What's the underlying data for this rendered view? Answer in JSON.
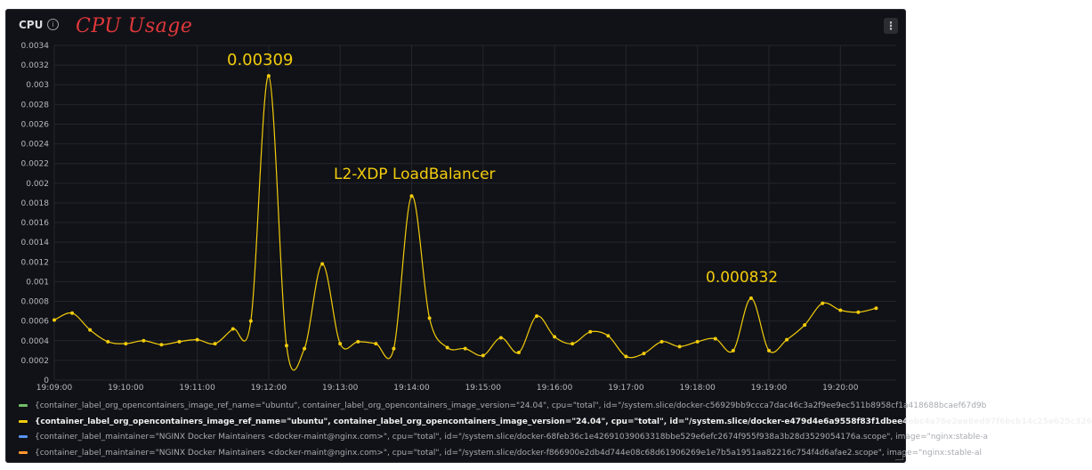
{
  "panel": {
    "title": "CPU",
    "info_icon": "info-circle-icon",
    "menu_icon": "kebab-menu-icon",
    "menu_glyph": "⋮",
    "info_glyph": "i"
  },
  "annotations": {
    "title": "CPU Usage",
    "peak_label": "0.00309",
    "lb_label": "L2-XDP LoadBalancer",
    "late_peak_label": "0.000832"
  },
  "colors": {
    "background": "#111217",
    "series_line": "#f2cc0c",
    "annotation_title": "#e0383c",
    "annotation_text": "#f2cc0c",
    "grid": "#24262c",
    "axis_text": "#b7b9be"
  },
  "legend": [
    {
      "color": "#73bf69",
      "text": "{container_label_org_opencontainers_image_ref_name=\"ubuntu\", container_label_org_opencontainers_image_version=\"24.04\", cpu=\"total\", id=\"/system.slice/docker-c56929bb9ccca7dac46c3a2f9ee9ec511b8958cf1a418688bcaef67d9b",
      "active": false
    },
    {
      "color": "#f2cc0c",
      "text": "{container_label_org_opencontainers_image_ref_name=\"ubuntu\", container_label_org_opencontainers_image_version=\"24.04\", cpu=\"total\", id=\"/system.slice/docker-e479d4e6a9558f83f1dbee4ebc4a76e2ea8ed97f6bcb14c25e625c326",
      "active": true
    },
    {
      "color": "#5794f2",
      "text": "{container_label_maintainer=\"NGINX Docker Maintainers <docker-maint@nginx.com>\", cpu=\"total\", id=\"/system.slice/docker-68feb36c1e42691039063318bbe529e6efc2674f955f938a3b28d3529054176a.scope\", image=\"nginx:stable-a",
      "active": false
    },
    {
      "color": "#ff9830",
      "text": "{container_label_maintainer=\"NGINX Docker Maintainers <docker-maint@nginx.com>\", cpu=\"total\", id=\"/system.slice/docker-f866900e2db4d744e08c68d61906269e1e7b5a1951aa82216c754f4d6afae2.scope\", image=\"nginx:stable-al",
      "active": false
    }
  ],
  "chart_data": {
    "type": "line",
    "title": "CPU",
    "xlabel": "",
    "ylabel": "",
    "ylim": [
      0,
      0.0034
    ],
    "yticks": [
      "0",
      "0.0002",
      "0.0004",
      "0.0006",
      "0.0008",
      "0.001",
      "0.0012",
      "0.0014",
      "0.0016",
      "0.0018",
      "0.002",
      "0.0022",
      "0.0024",
      "0.0026",
      "0.0028",
      "0.003",
      "0.0032",
      "0.0034"
    ],
    "xticks": [
      "19:09:00",
      "19:10:00",
      "19:11:00",
      "19:12:00",
      "19:13:00",
      "19:14:00",
      "19:15:00",
      "19:16:00",
      "19:17:00",
      "19:18:00",
      "19:19:00",
      "19:20:00"
    ],
    "grid": true,
    "legend_position": "bottom",
    "series": [
      {
        "color": "#f2cc0c",
        "x": [
          "19:09:00",
          "19:09:15",
          "19:09:30",
          "19:09:45",
          "19:10:00",
          "19:10:15",
          "19:10:30",
          "19:10:45",
          "19:11:00",
          "19:11:15",
          "19:11:30",
          "19:11:45",
          "19:12:00",
          "19:12:15",
          "19:12:30",
          "19:12:45",
          "19:13:00",
          "19:13:15",
          "19:13:30",
          "19:13:45",
          "19:14:00",
          "19:14:15",
          "19:14:30",
          "19:14:45",
          "19:15:00",
          "19:15:15",
          "19:15:30",
          "19:15:45",
          "19:16:00",
          "19:16:15",
          "19:16:30",
          "19:16:45",
          "19:17:00",
          "19:17:15",
          "19:17:30",
          "19:17:45",
          "19:18:00",
          "19:18:15",
          "19:18:30",
          "19:18:45",
          "19:19:00",
          "19:19:15",
          "19:19:30",
          "19:19:45",
          "19:20:00",
          "19:20:15",
          "19:20:30"
        ],
        "values": [
          0.00061,
          0.00068,
          0.00051,
          0.00039,
          0.00037,
          0.0004,
          0.00036,
          0.00039,
          0.00041,
          0.00037,
          0.00052,
          0.0006,
          0.00309,
          0.00035,
          0.00032,
          0.00118,
          0.00037,
          0.00039,
          0.00037,
          0.00032,
          0.00187,
          0.00063,
          0.00033,
          0.00032,
          0.00025,
          0.00043,
          0.00028,
          0.00065,
          0.00044,
          0.00037,
          0.00049,
          0.00045,
          0.00024,
          0.00027,
          0.00039,
          0.00034,
          0.00039,
          0.00042,
          0.0003,
          0.000832,
          0.0003,
          0.00041,
          0.00056,
          0.00078,
          0.00071,
          0.00069,
          0.00073
        ]
      }
    ]
  }
}
